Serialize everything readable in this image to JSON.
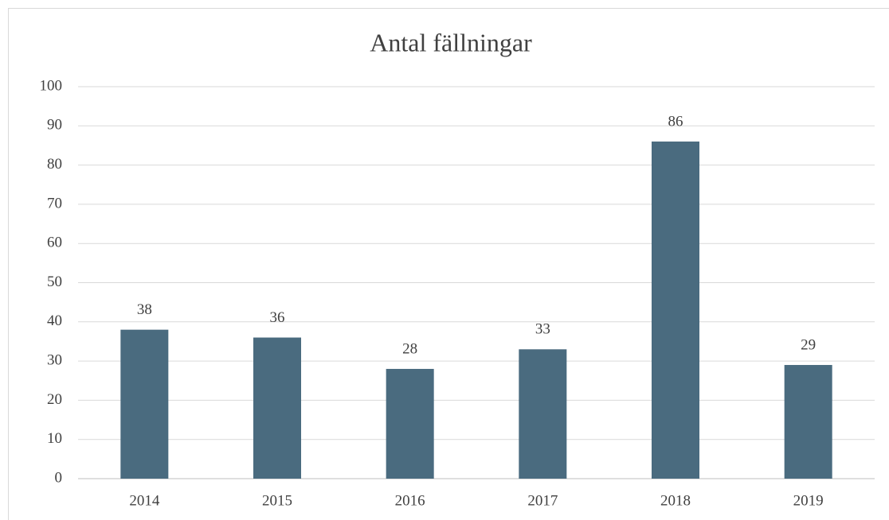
{
  "chart_data": {
    "type": "bar",
    "title": "Antal fällningar",
    "categories": [
      "2014",
      "2015",
      "2016",
      "2017",
      "2018",
      "2019"
    ],
    "values": [
      38,
      36,
      28,
      33,
      86,
      29
    ],
    "color": "#4a6b7f",
    "ylim": [
      0,
      100
    ],
    "yticks": [
      0,
      10,
      20,
      30,
      40,
      50,
      60,
      70,
      80,
      90,
      100
    ],
    "grid": true,
    "data_labels": true
  }
}
